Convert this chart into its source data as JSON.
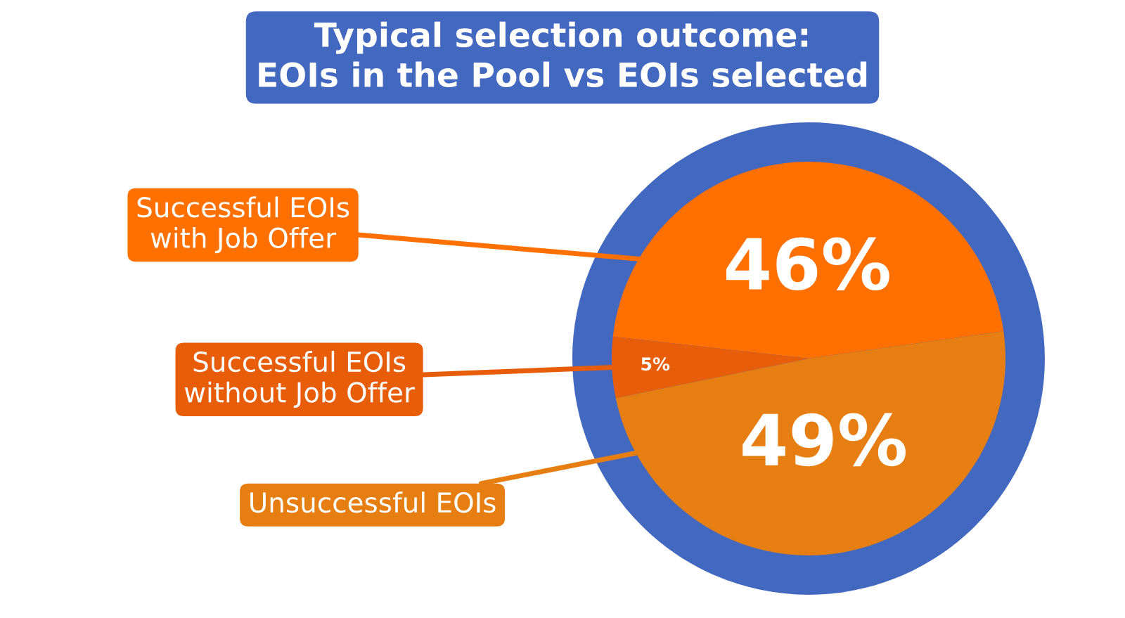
{
  "chart_data": {
    "type": "pie",
    "title": "Typical selection outcome:\nEOIs in the Pool vs EOIs selected",
    "categories": [
      "Successful EOIs\nwith Job Offer",
      "Successful EOIs\nwithout Job Offer",
      "Unsuccessful EOIs"
    ],
    "values": [
      46,
      5,
      49
    ],
    "colors": [
      "#ff7000",
      "#e85d0a",
      "#e67e12"
    ],
    "value_labels": [
      "46%",
      "5%",
      "49%"
    ]
  }
}
